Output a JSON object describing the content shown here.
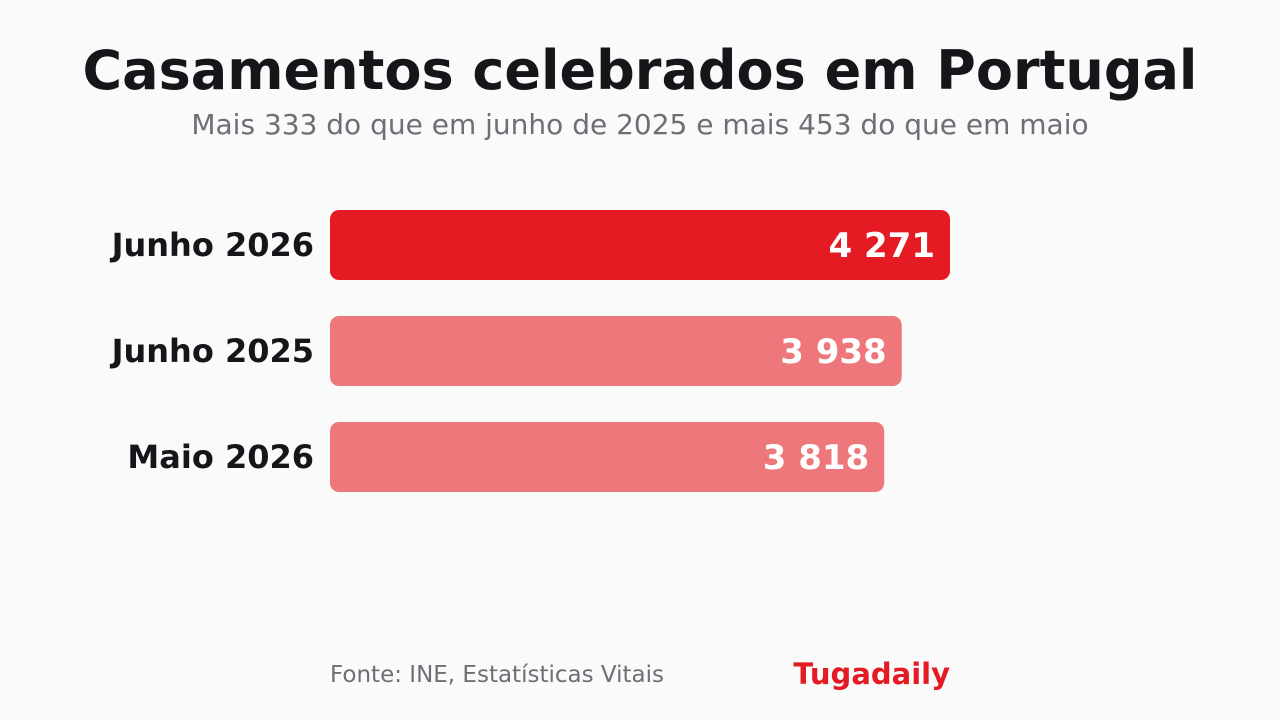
{
  "header": {
    "title": "Casamentos celebrados em Portugal",
    "subtitle": "Mais 333 do que em junho de 2025 e mais 453 do que em maio"
  },
  "footer": {
    "source": "Fonte: INE, Estatísticas Vitais",
    "brand": "Tugadaily"
  },
  "colors": {
    "highlight": "#e41b23",
    "muted": "#ee777b",
    "brand": "#e41b23"
  },
  "chart_data": {
    "type": "bar",
    "orientation": "horizontal",
    "categories": [
      "Junho 2026",
      "Junho 2025",
      "Maio 2026"
    ],
    "values": [
      4271,
      3938,
      3818
    ],
    "value_labels": [
      "4 271",
      "3 938",
      "3 818"
    ],
    "highlight_index": 0,
    "title": "Casamentos celebrados em Portugal",
    "subtitle": "Mais 333 do que em junho de 2025 e mais 453 do que em maio",
    "xlabel": "",
    "ylabel": "",
    "grid": false,
    "legend": "none"
  }
}
